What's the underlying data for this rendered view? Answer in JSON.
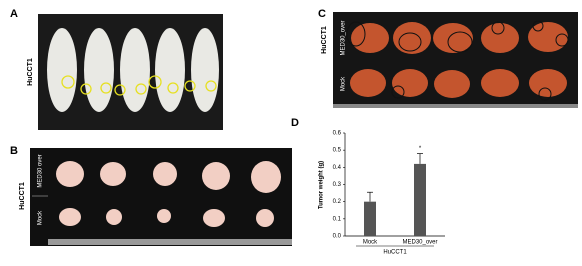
{
  "panels": {
    "A": {
      "label": "A",
      "row_label": "HuCCT1"
    },
    "B": {
      "label": "B",
      "row_label": "HuCCT1",
      "group_labels": [
        "MED30 over",
        "Mock"
      ]
    },
    "C": {
      "label": "C",
      "row_label": "HuCCT1",
      "group_labels": [
        "MED30_over",
        "Mock"
      ]
    }
  },
  "chart_data": {
    "type": "bar",
    "label": "D",
    "ylabel": "Tumor weight (g)",
    "xlabel": "HuCCT1",
    "categories": [
      "Mock",
      "MED30_over"
    ],
    "values": [
      0.2,
      0.42
    ],
    "errors": [
      0.055,
      0.06
    ],
    "annotations": [
      null,
      "*"
    ],
    "color": "#555555",
    "ylim": [
      0,
      0.6
    ],
    "yticks": [
      {
        "value": 0,
        "label": "0.0"
      },
      0.1,
      0.2,
      0.3,
      0.4,
      0.5,
      0.6
    ]
  }
}
